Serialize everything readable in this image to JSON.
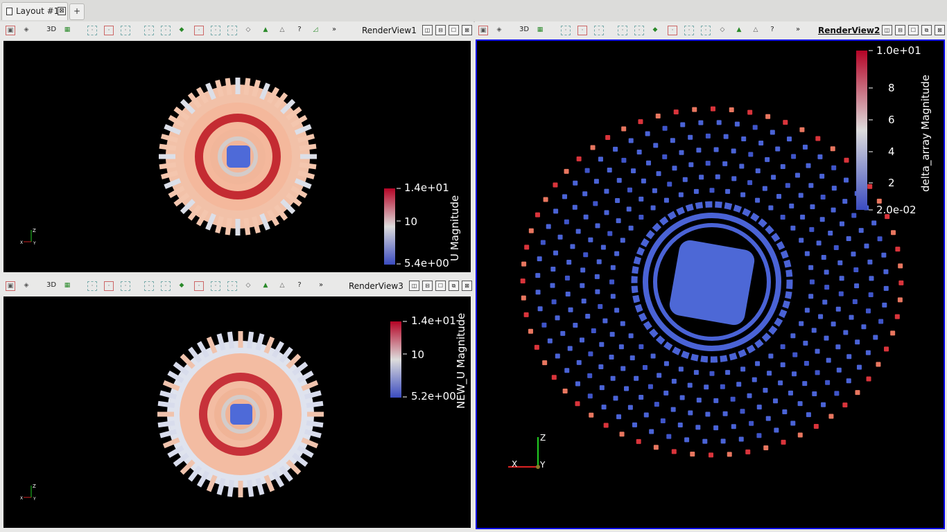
{
  "tabs": {
    "layout": "Layout #1",
    "close": "⊠",
    "add": "+"
  },
  "toolbar": {
    "three_d": "3D",
    "more": "»",
    "query": "?",
    "split_h": "◫",
    "split_v": "⊟",
    "maximize": "☐",
    "restore": "⧉",
    "close": "⊠"
  },
  "views": {
    "view1": {
      "name": "RenderView1",
      "legend": {
        "title": "U Magnitude",
        "max": "1.4e+01",
        "mid": "10",
        "min": "5.4e+00"
      }
    },
    "view3": {
      "name": "RenderView3",
      "legend": {
        "title": "NEW_U Magnitude",
        "max": "1.4e+01",
        "mid": "10",
        "min": "5.2e+00"
      }
    },
    "view2": {
      "name": "RenderView2",
      "legend": {
        "title": "delta_array Magnitude",
        "max": "1.0e+01",
        "t8": "8",
        "t6": "6",
        "t4": "4",
        "t2": "2",
        "min": "2.0e-02"
      }
    }
  },
  "axes": {
    "x": "X",
    "y": "Y",
    "z": "Z"
  },
  "colors": {
    "cool": "#3b4cc0",
    "warm": "#b40426",
    "active_border": "#0000e8"
  }
}
